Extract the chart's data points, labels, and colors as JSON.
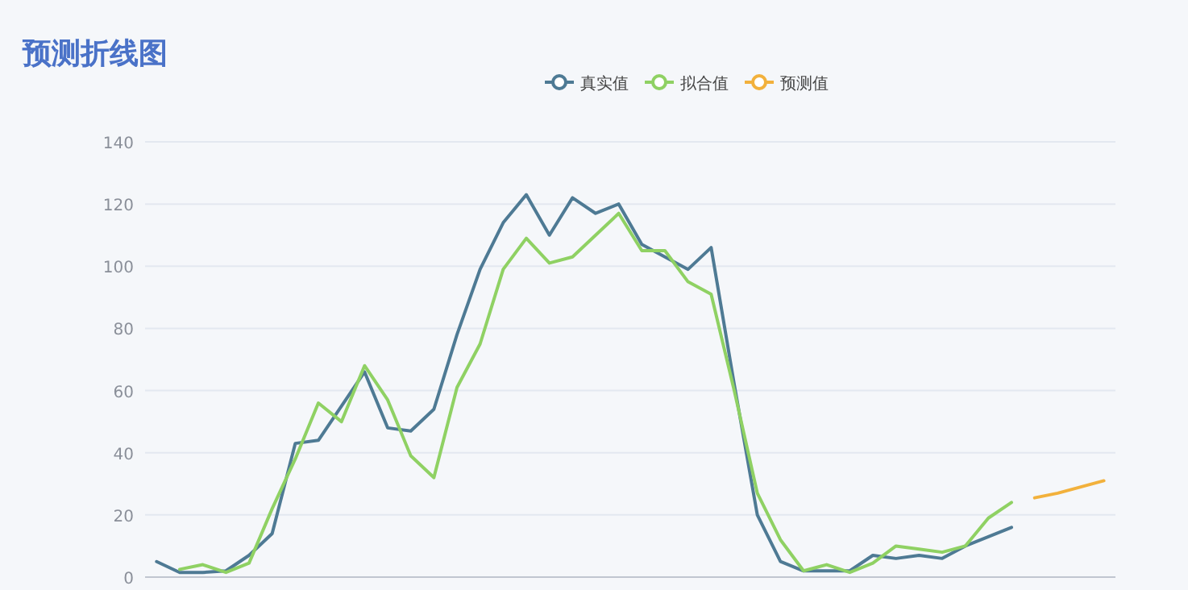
{
  "chart_data": {
    "type": "line",
    "title": "预测折线图",
    "categories": [
      null,
      null,
      null,
      null,
      null,
      null,
      null,
      null,
      null,
      null,
      null,
      null,
      null,
      null,
      null,
      null,
      null,
      null,
      null,
      null,
      null,
      null,
      null,
      null,
      null,
      null,
      null,
      null,
      null,
      null,
      null,
      null,
      null,
      null,
      null,
      null,
      null,
      null,
      null,
      null,
      null,
      null
    ],
    "series": [
      {
        "name": "真实值",
        "color": "#4e7a94",
        "values": [
          5,
          1.5,
          1.5,
          2,
          7,
          14,
          43,
          44,
          55,
          66,
          48,
          47,
          54,
          78,
          99,
          114,
          123,
          110,
          122,
          117,
          120,
          107,
          103,
          99,
          106,
          62,
          20,
          5,
          2,
          2,
          2,
          7,
          6,
          7,
          6,
          10,
          13,
          16,
          null,
          null,
          null,
          null
        ]
      },
      {
        "name": "拟合值",
        "color": "#8fd163",
        "values": [
          null,
          2.5,
          4,
          1.5,
          4.5,
          22,
          38,
          56,
          50,
          68,
          57,
          39,
          32,
          61,
          75,
          99,
          109,
          101,
          103,
          110,
          117,
          105,
          105,
          95,
          91,
          60,
          27,
          12,
          2,
          4,
          1.5,
          4.5,
          10,
          9,
          8,
          10,
          19,
          24,
          null,
          null,
          null,
          null
        ]
      },
      {
        "name": "预测值",
        "color": "#f2b13c",
        "values": [
          null,
          null,
          null,
          null,
          null,
          null,
          null,
          null,
          null,
          null,
          null,
          null,
          null,
          null,
          null,
          null,
          null,
          null,
          null,
          null,
          null,
          null,
          null,
          null,
          null,
          null,
          null,
          null,
          null,
          null,
          null,
          null,
          null,
          null,
          null,
          null,
          null,
          null,
          25.5,
          27,
          29,
          31
        ]
      }
    ],
    "ylim": [
      0,
      140
    ],
    "yticks": [
      0,
      20,
      40,
      60,
      80,
      100,
      120,
      140
    ],
    "grid": "y",
    "legend": "top",
    "marker": "none",
    "line_style": "solid"
  }
}
